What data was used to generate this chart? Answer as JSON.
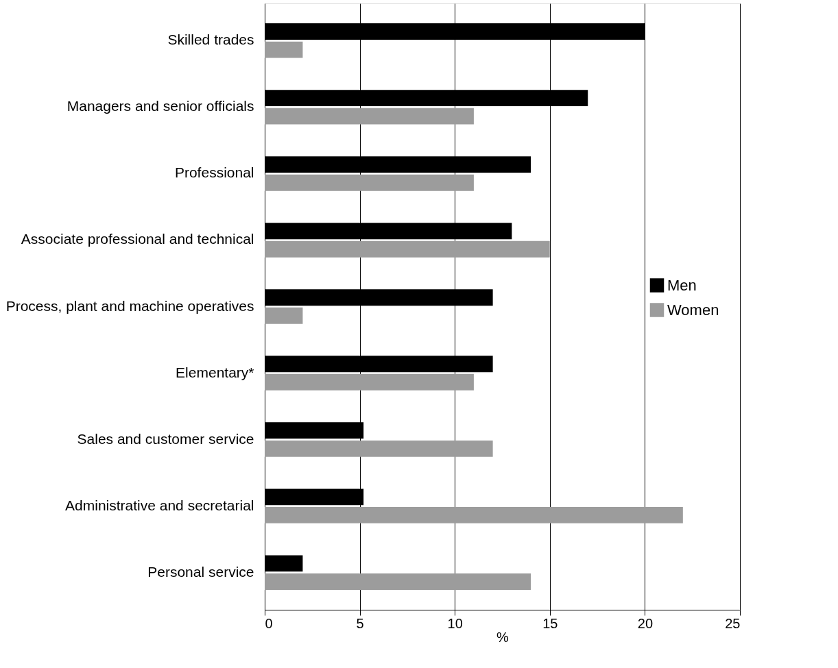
{
  "chart_data": {
    "type": "bar",
    "orientation": "horizontal",
    "xlabel": "%",
    "categories": [
      "Skilled trades",
      "Managers and senior officials",
      "Professional",
      "Associate professional and technical",
      "Process, plant and machine operatives",
      "Elementary*",
      "Sales and customer service",
      "Administrative and secretarial",
      "Personal service"
    ],
    "series": [
      {
        "name": "Men",
        "color": "#000000",
        "values": [
          20,
          17,
          14,
          13,
          12,
          12,
          5.2,
          5.2,
          2
        ]
      },
      {
        "name": "Women",
        "color": "#9c9c9c",
        "values": [
          2,
          11,
          11,
          15,
          2,
          11,
          12,
          22,
          14
        ]
      }
    ],
    "xlim": [
      0,
      25
    ],
    "xticks": [
      0,
      5,
      10,
      15,
      20,
      25
    ],
    "grid": "x",
    "legend": "right"
  }
}
